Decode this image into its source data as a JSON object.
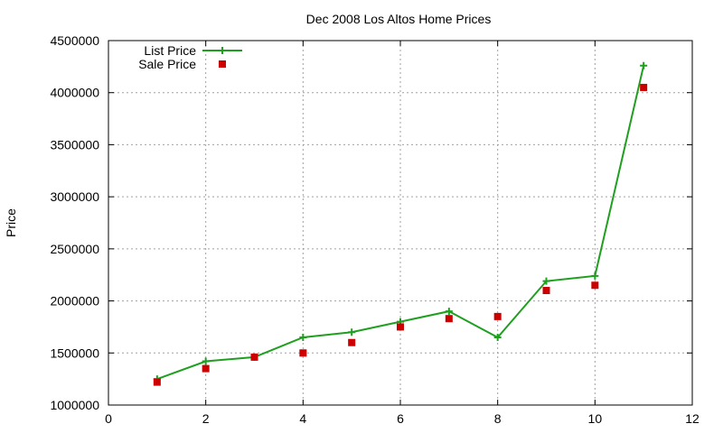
{
  "chart_data": {
    "type": "line",
    "title": "Dec 2008 Los Altos Home Prices",
    "xlabel": "",
    "ylabel": "Price",
    "xlim": [
      0,
      12
    ],
    "ylim": [
      1000000,
      4500000
    ],
    "xticks": [
      0,
      2,
      4,
      6,
      8,
      10,
      12
    ],
    "yticks": [
      1000000,
      1500000,
      2000000,
      2500000,
      3000000,
      3500000,
      4000000,
      4500000
    ],
    "grid": true,
    "legend_position": "top-left",
    "series": [
      {
        "name": "List Price",
        "style": "line-with-plus-markers",
        "color": "#1f9f1f",
        "x": [
          1,
          2,
          3,
          4,
          5,
          6,
          7,
          8,
          9,
          10,
          11
        ],
        "y": [
          1250000,
          1420000,
          1460000,
          1650000,
          1700000,
          1800000,
          1900000,
          1650000,
          2190000,
          2240000,
          4260000
        ]
      },
      {
        "name": "Sale Price",
        "style": "square-markers",
        "color": "#cc0000",
        "x": [
          1,
          2,
          3,
          4,
          5,
          6,
          7,
          8,
          9,
          10,
          11
        ],
        "y": [
          1220000,
          1350000,
          1460000,
          1500000,
          1600000,
          1750000,
          1830000,
          1850000,
          2100000,
          2150000,
          4050000
        ]
      }
    ]
  }
}
